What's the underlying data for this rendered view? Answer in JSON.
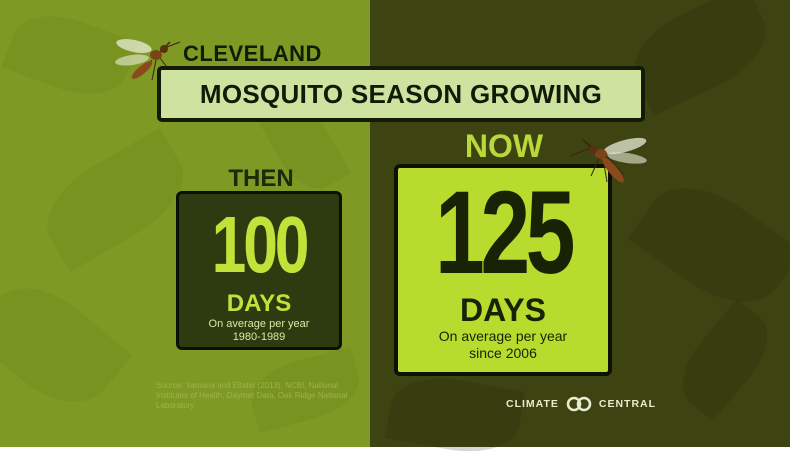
{
  "header": {
    "location": "CLEVELAND",
    "title": "MOSQUITO SEASON GROWING"
  },
  "then": {
    "label": "THEN",
    "value": "100",
    "unit": "DAYS",
    "note": "On average per year",
    "period": "1980-1989"
  },
  "now": {
    "label": "NOW",
    "value": "125",
    "unit": "DAYS",
    "note": "On average per year",
    "period": "since 2006"
  },
  "source": {
    "text": "Source: Yamana and Eltahir (2013), NCBI, National Institutes of Health, Daymet Data, Oak Ridge National Laboratory"
  },
  "brand": {
    "left_word": "CLIMATE",
    "right_word": "CENTRAL"
  },
  "icons": {
    "mosquito_left": "mosquito-icon",
    "mosquito_right": "mosquito-icon",
    "brand_logo": "linked-rings-icon"
  },
  "colors": {
    "left_panel": "#7f9a24",
    "right_panel": "#3d4311",
    "accent_green": "#b7dc2e",
    "dark_box": "#2e3a10",
    "title_box": "#cfe3a0"
  }
}
